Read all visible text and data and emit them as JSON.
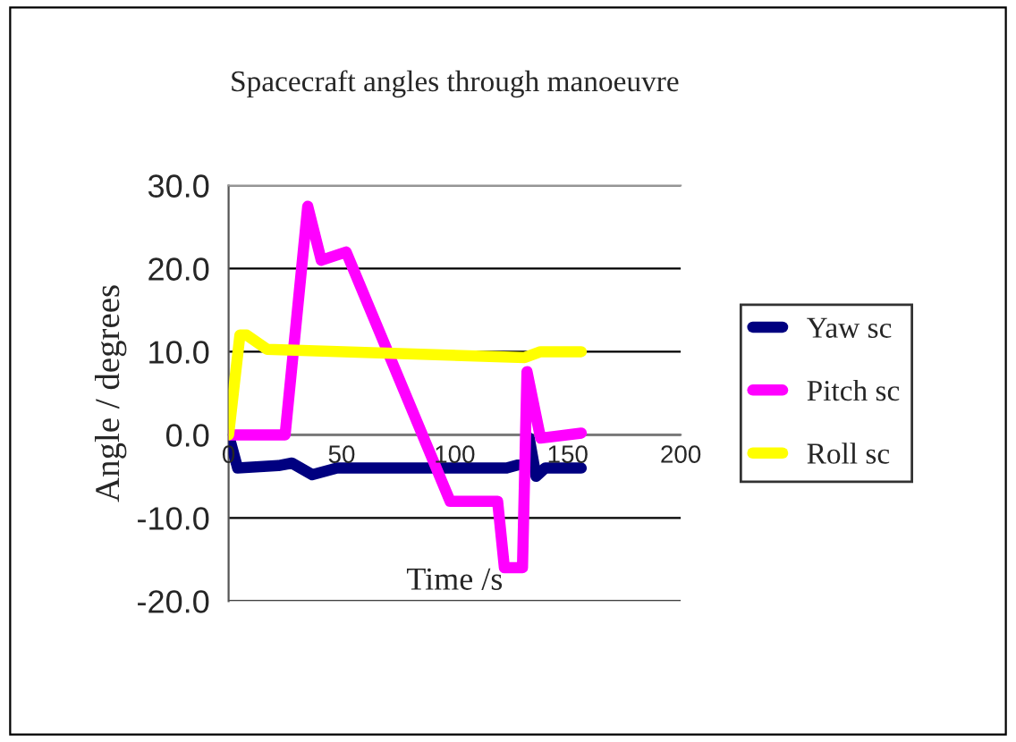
{
  "chart_data": {
    "type": "line",
    "title": "Spacecraft angles through manoeuvre",
    "xlabel": "Time /s",
    "ylabel": "Angle / degrees",
    "xlim": [
      0,
      200
    ],
    "xticks": [
      0,
      50,
      100,
      150,
      200
    ],
    "ylim": [
      -20,
      30
    ],
    "yticks": [
      {
        "value": -20,
        "label": "-20.0"
      },
      {
        "value": -10,
        "label": "-10.0"
      },
      {
        "value": 0,
        "label": "0.0"
      },
      {
        "value": 10,
        "label": "10.0"
      },
      {
        "value": 20,
        "label": "20.0"
      },
      {
        "value": 30,
        "label": "30.0"
      }
    ],
    "grid": "y",
    "legend": "right",
    "marker": "none",
    "line_style": "solid",
    "series": [
      {
        "name": "Yaw sc",
        "color": "#000080",
        "x": [
          0,
          4,
          22,
          28,
          37,
          48,
          123,
          131,
          133,
          136,
          140,
          156
        ],
        "values": [
          0,
          -4,
          -3.7,
          -3.4,
          -4.8,
          -4,
          -4,
          -3.4,
          -0.4,
          -5,
          -4,
          -4
        ]
      },
      {
        "name": "Pitch sc",
        "color": "#ff00ff",
        "x": [
          0,
          25,
          35,
          41,
          52,
          98,
          119,
          122,
          130,
          132,
          138,
          156
        ],
        "values": [
          0,
          0,
          27.5,
          21,
          22,
          -8,
          -8,
          -16,
          -16,
          7.6,
          -0.4,
          0.2
        ]
      },
      {
        "name": "Roll sc",
        "color": "#ffff00",
        "x": [
          0,
          5,
          8,
          17,
          131,
          138,
          156
        ],
        "values": [
          0,
          12,
          12,
          10.3,
          9.3,
          10,
          10
        ]
      }
    ]
  }
}
